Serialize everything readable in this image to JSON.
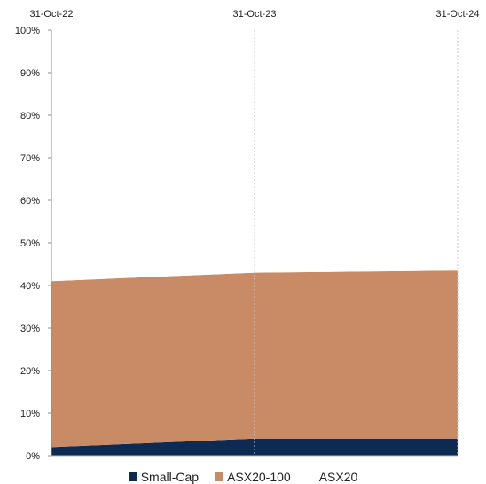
{
  "chart_data": {
    "type": "area",
    "stacked": true,
    "x": [
      "31-Oct-22",
      "31-Oct-23",
      "31-Oct-24"
    ],
    "series": [
      {
        "name": "Small-Cap",
        "values": [
          2,
          4,
          4
        ],
        "color": "#0d2a52"
      },
      {
        "name": "ASX20-100",
        "values": [
          39,
          39,
          39.5
        ],
        "color": "#c98b65"
      },
      {
        "name": "ASX20",
        "values": [
          59,
          57,
          56.5
        ],
        "color": "#ffffff"
      }
    ],
    "y_ticks": [
      "0%",
      "10%",
      "20%",
      "30%",
      "40%",
      "50%",
      "60%",
      "70%",
      "80%",
      "90%",
      "100%"
    ],
    "ylim": [
      0,
      100
    ],
    "xaxis_position": "top",
    "grid": "vertical-dotted",
    "legend": "bottom-center"
  }
}
